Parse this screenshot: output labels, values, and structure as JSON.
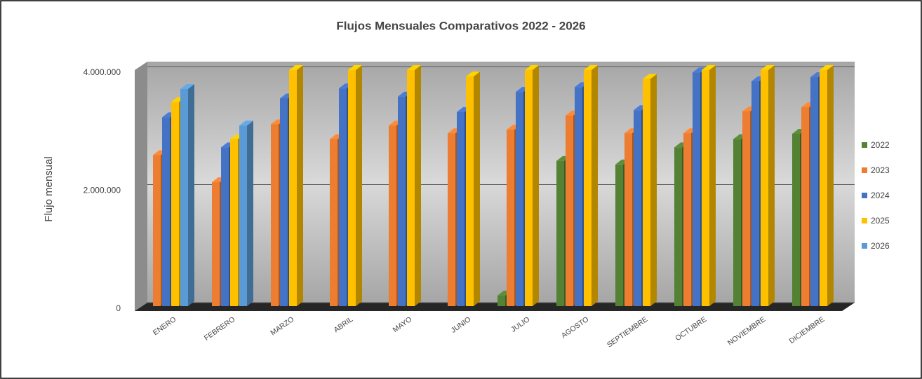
{
  "chart_data": {
    "type": "bar3d",
    "title": "Flujos Mensuales Comparativos 2022 - 2026",
    "y_label": "Flujo mensual",
    "categories": [
      "ENERO",
      "FEBRERO",
      "MARZO",
      "ABRIL",
      "MAYO",
      "JUNIO",
      "JULIO",
      "AGOSTO",
      "SEPTIEMBRE",
      "OCTUBRE",
      "NOVIEMBRE",
      "DICIEMBRE"
    ],
    "series": [
      {
        "name": "2022",
        "color": "#548235",
        "values": [
          null,
          null,
          null,
          null,
          null,
          null,
          180000,
          2460000,
          2400000,
          2690000,
          2830000,
          2920000
        ]
      },
      {
        "name": "2023",
        "color": "#ed7d31",
        "values": [
          2560000,
          2100000,
          3080000,
          2830000,
          3060000,
          2930000,
          2990000,
          3230000,
          2930000,
          2930000,
          3300000,
          3370000
        ]
      },
      {
        "name": "2024",
        "color": "#4472c4",
        "values": [
          3200000,
          2690000,
          3520000,
          3690000,
          3550000,
          3290000,
          3630000,
          3710000,
          3320000,
          3960000,
          3810000,
          3880000
        ]
      },
      {
        "name": "2025",
        "color": "#ffc000",
        "values": [
          3460000,
          2830000,
          4000000,
          4000000,
          4000000,
          3890000,
          4000000,
          4000000,
          3850000,
          4000000,
          4000000,
          4000000
        ]
      },
      {
        "name": "2026",
        "color": "#5b9bd5",
        "values": [
          3680000,
          3060000,
          null,
          null,
          null,
          null,
          null,
          null,
          null,
          null,
          null,
          null
        ]
      }
    ],
    "ylim": [
      0,
      4000000
    ],
    "yticks": [
      0,
      {
        "value": 2000000,
        "label": "2.000.000"
      },
      {
        "value": 4000000,
        "label": "4.000.000"
      }
    ],
    "grid": true,
    "legend": "right"
  }
}
